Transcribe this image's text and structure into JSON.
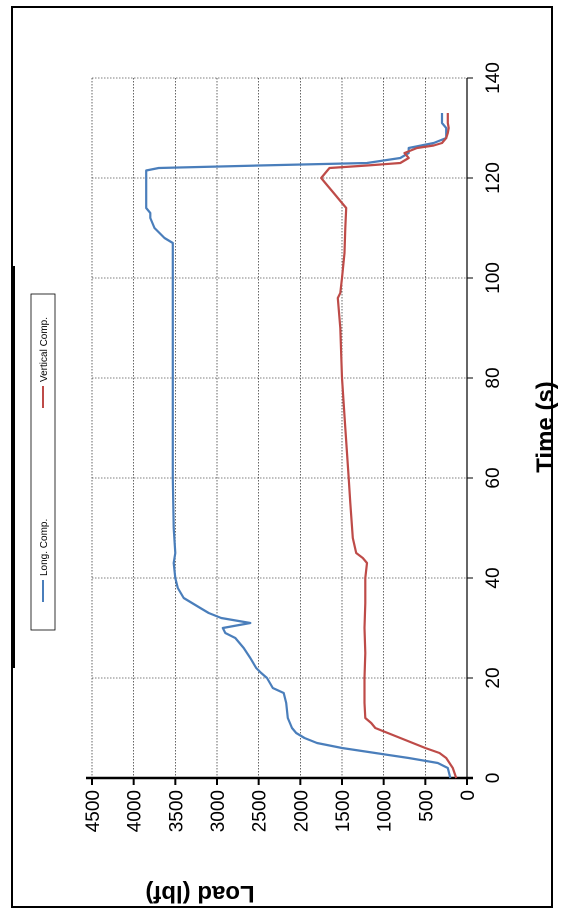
{
  "chart_data": {
    "type": "line",
    "xlabel": "Time (s)",
    "ylabel": "Load (lbf)",
    "xlim": [
      0,
      140
    ],
    "ylim": [
      0,
      4500
    ],
    "x_ticks": [
      "0",
      "20",
      "40",
      "60",
      "80",
      "100",
      "120",
      "140"
    ],
    "y_ticks": [
      "0",
      "500",
      "1000",
      "1500",
      "2000",
      "2500",
      "3000",
      "3500",
      "4000",
      "4500"
    ],
    "grid": true,
    "legend_position": "top",
    "series": [
      {
        "name": "Long. Comp.",
        "color": "#4a7ebb",
        "points": [
          [
            0,
            200
          ],
          [
            2,
            230
          ],
          [
            3,
            350
          ],
          [
            4,
            700
          ],
          [
            5,
            1100
          ],
          [
            6,
            1500
          ],
          [
            7,
            1800
          ],
          [
            8,
            1950
          ],
          [
            9,
            2050
          ],
          [
            10,
            2100
          ],
          [
            12,
            2150
          ],
          [
            15,
            2170
          ],
          [
            17,
            2200
          ],
          [
            18,
            2330
          ],
          [
            20,
            2400
          ],
          [
            21,
            2470
          ],
          [
            22,
            2530
          ],
          [
            24,
            2600
          ],
          [
            26,
            2680
          ],
          [
            28,
            2780
          ],
          [
            29,
            2900
          ],
          [
            30,
            2930
          ],
          [
            31,
            2600
          ],
          [
            32,
            2950
          ],
          [
            33,
            3100
          ],
          [
            34,
            3200
          ],
          [
            35,
            3300
          ],
          [
            36,
            3400
          ],
          [
            38,
            3470
          ],
          [
            40,
            3500
          ],
          [
            43,
            3520
          ],
          [
            45,
            3500
          ],
          [
            50,
            3520
          ],
          [
            60,
            3530
          ],
          [
            70,
            3530
          ],
          [
            80,
            3530
          ],
          [
            90,
            3530
          ],
          [
            100,
            3530
          ],
          [
            107,
            3530
          ],
          [
            108,
            3630
          ],
          [
            110,
            3750
          ],
          [
            112,
            3800
          ],
          [
            113,
            3800
          ],
          [
            114,
            3850
          ],
          [
            116,
            3850
          ],
          [
            118,
            3850
          ],
          [
            120,
            3850
          ],
          [
            121.5,
            3850
          ],
          [
            122,
            3700
          ],
          [
            122.5,
            2500
          ],
          [
            123,
            1200
          ],
          [
            124,
            800
          ],
          [
            125,
            700
          ],
          [
            126,
            700
          ],
          [
            127,
            400
          ],
          [
            128,
            250
          ],
          [
            130,
            250
          ],
          [
            131,
            300
          ],
          [
            132,
            300
          ],
          [
            133,
            300
          ]
        ]
      },
      {
        "name": "Vertical Comp.",
        "color": "#be4b48",
        "points": [
          [
            0,
            130
          ],
          [
            2,
            170
          ],
          [
            4,
            250
          ],
          [
            5,
            330
          ],
          [
            6,
            500
          ],
          [
            7,
            650
          ],
          [
            8,
            800
          ],
          [
            9,
            950
          ],
          [
            10,
            1100
          ],
          [
            11,
            1150
          ],
          [
            12,
            1220
          ],
          [
            15,
            1230
          ],
          [
            20,
            1230
          ],
          [
            25,
            1220
          ],
          [
            30,
            1230
          ],
          [
            35,
            1220
          ],
          [
            40,
            1220
          ],
          [
            43,
            1200
          ],
          [
            44,
            1250
          ],
          [
            45,
            1330
          ],
          [
            48,
            1370
          ],
          [
            55,
            1400
          ],
          [
            60,
            1420
          ],
          [
            70,
            1460
          ],
          [
            80,
            1500
          ],
          [
            90,
            1520
          ],
          [
            96,
            1550
          ],
          [
            97,
            1520
          ],
          [
            100,
            1500
          ],
          [
            105,
            1470
          ],
          [
            110,
            1460
          ],
          [
            114,
            1450
          ],
          [
            115,
            1500
          ],
          [
            117,
            1600
          ],
          [
            119,
            1700
          ],
          [
            120,
            1750
          ],
          [
            121,
            1700
          ],
          [
            122,
            1650
          ],
          [
            122.5,
            1200
          ],
          [
            123,
            800
          ],
          [
            124,
            700
          ],
          [
            125,
            750
          ],
          [
            126,
            600
          ],
          [
            126.5,
            400
          ],
          [
            127,
            300
          ],
          [
            128,
            250
          ],
          [
            129,
            230
          ],
          [
            130,
            220
          ],
          [
            131,
            230
          ],
          [
            132,
            230
          ],
          [
            133,
            230
          ]
        ]
      }
    ]
  }
}
